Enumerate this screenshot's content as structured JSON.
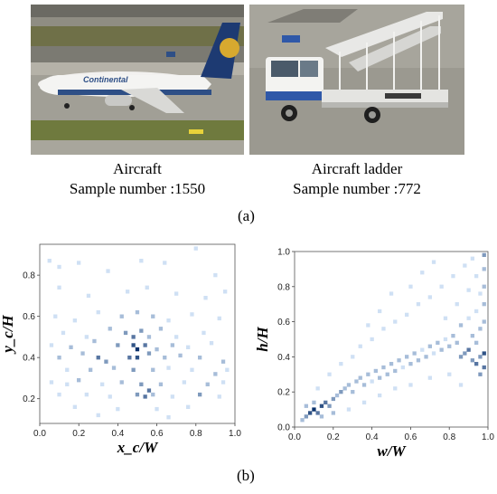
{
  "photos": [
    {
      "caption_line1": "Aircraft",
      "caption_line2": "Sample number :1550",
      "logo_text": "Continental"
    },
    {
      "caption_line1": "Aircraft ladder",
      "caption_line2": "Sample number :772"
    }
  ],
  "panel_a_label": "(a)",
  "panel_b_label": "(b)",
  "chart_data": [
    {
      "type": "heatmap",
      "title": "",
      "xlabel": "x_c/W",
      "ylabel": "y_c/H",
      "xlim": [
        0.0,
        1.0
      ],
      "ylim": [
        0.08,
        0.95
      ],
      "xticks": [
        "0.0",
        "0.2",
        "0.4",
        "0.6",
        "0.8",
        "1.0"
      ],
      "yticks": [
        "0.2",
        "0.4",
        "0.6",
        "0.8"
      ],
      "colormap": [
        "#cfe0f4",
        "#08306b"
      ],
      "cells": [
        [
          0.05,
          0.87,
          1
        ],
        [
          0.1,
          0.84,
          1
        ],
        [
          0.2,
          0.86,
          1
        ],
        [
          0.35,
          0.82,
          1
        ],
        [
          0.52,
          0.87,
          1
        ],
        [
          0.64,
          0.86,
          1
        ],
        [
          0.8,
          0.93,
          1
        ],
        [
          0.9,
          0.8,
          1
        ],
        [
          0.1,
          0.74,
          1
        ],
        [
          0.25,
          0.7,
          1
        ],
        [
          0.45,
          0.72,
          1
        ],
        [
          0.55,
          0.74,
          1
        ],
        [
          0.7,
          0.71,
          1
        ],
        [
          0.85,
          0.69,
          1
        ],
        [
          0.95,
          0.72,
          1
        ],
        [
          0.08,
          0.6,
          1
        ],
        [
          0.18,
          0.58,
          1
        ],
        [
          0.3,
          0.62,
          1
        ],
        [
          0.42,
          0.6,
          2
        ],
        [
          0.5,
          0.62,
          2
        ],
        [
          0.58,
          0.6,
          2
        ],
        [
          0.66,
          0.58,
          1
        ],
        [
          0.78,
          0.61,
          1
        ],
        [
          0.92,
          0.59,
          1
        ],
        [
          0.12,
          0.52,
          1
        ],
        [
          0.24,
          0.5,
          1
        ],
        [
          0.36,
          0.54,
          2
        ],
        [
          0.44,
          0.52,
          3
        ],
        [
          0.48,
          0.5,
          4
        ],
        [
          0.52,
          0.53,
          3
        ],
        [
          0.56,
          0.5,
          2
        ],
        [
          0.62,
          0.54,
          2
        ],
        [
          0.7,
          0.5,
          1
        ],
        [
          0.84,
          0.52,
          1
        ],
        [
          0.06,
          0.46,
          1
        ],
        [
          0.16,
          0.45,
          2
        ],
        [
          0.28,
          0.48,
          2
        ],
        [
          0.4,
          0.46,
          3
        ],
        [
          0.48,
          0.46,
          5
        ],
        [
          0.5,
          0.44,
          6
        ],
        [
          0.54,
          0.46,
          4
        ],
        [
          0.6,
          0.44,
          2
        ],
        [
          0.68,
          0.46,
          2
        ],
        [
          0.76,
          0.45,
          1
        ],
        [
          0.88,
          0.47,
          1
        ],
        [
          0.1,
          0.4,
          2
        ],
        [
          0.22,
          0.42,
          2
        ],
        [
          0.3,
          0.4,
          4
        ],
        [
          0.34,
          0.38,
          3
        ],
        [
          0.46,
          0.4,
          4
        ],
        [
          0.5,
          0.4,
          5
        ],
        [
          0.56,
          0.42,
          3
        ],
        [
          0.64,
          0.4,
          2
        ],
        [
          0.72,
          0.41,
          2
        ],
        [
          0.82,
          0.4,
          2
        ],
        [
          0.94,
          0.38,
          2
        ],
        [
          0.14,
          0.34,
          1
        ],
        [
          0.26,
          0.34,
          2
        ],
        [
          0.38,
          0.35,
          2
        ],
        [
          0.48,
          0.34,
          3
        ],
        [
          0.58,
          0.34,
          2
        ],
        [
          0.66,
          0.35,
          1
        ],
        [
          0.78,
          0.34,
          1
        ],
        [
          0.9,
          0.32,
          2
        ],
        [
          0.96,
          0.34,
          1
        ],
        [
          0.06,
          0.28,
          1
        ],
        [
          0.14,
          0.27,
          1
        ],
        [
          0.2,
          0.29,
          2
        ],
        [
          0.32,
          0.27,
          1
        ],
        [
          0.42,
          0.28,
          2
        ],
        [
          0.52,
          0.27,
          3
        ],
        [
          0.56,
          0.24,
          4
        ],
        [
          0.62,
          0.27,
          2
        ],
        [
          0.74,
          0.28,
          1
        ],
        [
          0.86,
          0.27,
          2
        ],
        [
          0.94,
          0.28,
          1
        ],
        [
          0.1,
          0.22,
          1
        ],
        [
          0.24,
          0.22,
          1
        ],
        [
          0.36,
          0.21,
          1
        ],
        [
          0.5,
          0.22,
          3
        ],
        [
          0.54,
          0.21,
          4
        ],
        [
          0.58,
          0.22,
          2
        ],
        [
          0.68,
          0.21,
          1
        ],
        [
          0.82,
          0.22,
          3
        ],
        [
          0.92,
          0.21,
          1
        ],
        [
          0.18,
          0.16,
          1
        ],
        [
          0.4,
          0.15,
          1
        ],
        [
          0.6,
          0.15,
          1
        ],
        [
          0.76,
          0.16,
          1
        ],
        [
          0.3,
          0.12,
          1
        ],
        [
          0.66,
          0.11,
          1
        ]
      ]
    },
    {
      "type": "heatmap",
      "title": "",
      "xlabel": "w/W",
      "ylabel": "h/H",
      "xlim": [
        0.0,
        1.0
      ],
      "ylim": [
        0.0,
        1.0
      ],
      "xticks": [
        "0.0",
        "0.2",
        "0.4",
        "0.6",
        "0.8",
        "1.0"
      ],
      "yticks": [
        "0.0",
        "0.2",
        "0.4",
        "0.6",
        "0.8",
        "1.0"
      ],
      "colormap": [
        "#cfe0f4",
        "#08306b"
      ],
      "cells": [
        [
          0.04,
          0.04,
          2
        ],
        [
          0.06,
          0.06,
          3
        ],
        [
          0.08,
          0.08,
          5
        ],
        [
          0.1,
          0.1,
          6
        ],
        [
          0.12,
          0.08,
          4
        ],
        [
          0.14,
          0.12,
          5
        ],
        [
          0.16,
          0.14,
          4
        ],
        [
          0.18,
          0.12,
          3
        ],
        [
          0.2,
          0.16,
          3
        ],
        [
          0.1,
          0.14,
          2
        ],
        [
          0.06,
          0.12,
          2
        ],
        [
          0.22,
          0.18,
          2
        ],
        [
          0.24,
          0.2,
          3
        ],
        [
          0.26,
          0.22,
          2
        ],
        [
          0.28,
          0.24,
          2
        ],
        [
          0.3,
          0.2,
          2
        ],
        [
          0.14,
          0.06,
          2
        ],
        [
          0.2,
          0.08,
          2
        ],
        [
          0.32,
          0.26,
          2
        ],
        [
          0.34,
          0.28,
          2
        ],
        [
          0.36,
          0.24,
          2
        ],
        [
          0.38,
          0.3,
          2
        ],
        [
          0.4,
          0.26,
          1
        ],
        [
          0.42,
          0.32,
          2
        ],
        [
          0.44,
          0.28,
          2
        ],
        [
          0.46,
          0.34,
          2
        ],
        [
          0.48,
          0.3,
          2
        ],
        [
          0.5,
          0.36,
          2
        ],
        [
          0.52,
          0.32,
          2
        ],
        [
          0.54,
          0.38,
          2
        ],
        [
          0.56,
          0.34,
          1
        ],
        [
          0.58,
          0.4,
          2
        ],
        [
          0.6,
          0.36,
          2
        ],
        [
          0.62,
          0.42,
          2
        ],
        [
          0.64,
          0.38,
          2
        ],
        [
          0.66,
          0.44,
          1
        ],
        [
          0.68,
          0.4,
          2
        ],
        [
          0.7,
          0.46,
          2
        ],
        [
          0.72,
          0.42,
          1
        ],
        [
          0.74,
          0.48,
          2
        ],
        [
          0.76,
          0.44,
          2
        ],
        [
          0.78,
          0.5,
          1
        ],
        [
          0.8,
          0.46,
          2
        ],
        [
          0.82,
          0.52,
          2
        ],
        [
          0.84,
          0.48,
          2
        ],
        [
          0.86,
          0.4,
          3
        ],
        [
          0.88,
          0.42,
          3
        ],
        [
          0.9,
          0.44,
          4
        ],
        [
          0.92,
          0.38,
          3
        ],
        [
          0.94,
          0.36,
          4
        ],
        [
          0.96,
          0.4,
          3
        ],
        [
          0.98,
          0.42,
          5
        ],
        [
          0.98,
          0.34,
          4
        ],
        [
          0.96,
          0.3,
          3
        ],
        [
          0.98,
          0.6,
          2
        ],
        [
          0.96,
          0.56,
          2
        ],
        [
          0.98,
          0.7,
          2
        ],
        [
          0.94,
          0.66,
          1
        ],
        [
          0.98,
          0.8,
          2
        ],
        [
          0.96,
          0.76,
          1
        ],
        [
          0.98,
          0.9,
          2
        ],
        [
          0.94,
          0.86,
          1
        ],
        [
          0.98,
          0.98,
          3
        ],
        [
          0.3,
          0.4,
          1
        ],
        [
          0.34,
          0.46,
          1
        ],
        [
          0.4,
          0.5,
          1
        ],
        [
          0.46,
          0.56,
          1
        ],
        [
          0.52,
          0.6,
          1
        ],
        [
          0.58,
          0.64,
          1
        ],
        [
          0.64,
          0.7,
          1
        ],
        [
          0.7,
          0.74,
          1
        ],
        [
          0.76,
          0.8,
          1
        ],
        [
          0.82,
          0.86,
          1
        ],
        [
          0.88,
          0.92,
          1
        ],
        [
          0.92,
          0.96,
          1
        ],
        [
          0.6,
          0.8,
          1
        ],
        [
          0.66,
          0.88,
          1
        ],
        [
          0.72,
          0.94,
          1
        ],
        [
          0.5,
          0.76,
          1
        ],
        [
          0.44,
          0.66,
          1
        ],
        [
          0.38,
          0.58,
          1
        ],
        [
          0.18,
          0.3,
          1
        ],
        [
          0.24,
          0.36,
          1
        ],
        [
          0.12,
          0.22,
          1
        ],
        [
          0.28,
          0.1,
          1
        ],
        [
          0.36,
          0.14,
          1
        ],
        [
          0.44,
          0.18,
          1
        ],
        [
          0.52,
          0.22,
          1
        ],
        [
          0.6,
          0.24,
          1
        ],
        [
          0.7,
          0.28,
          1
        ],
        [
          0.8,
          0.3,
          1
        ],
        [
          0.86,
          0.24,
          1
        ],
        [
          0.78,
          0.62,
          1
        ],
        [
          0.84,
          0.7,
          1
        ],
        [
          0.9,
          0.78,
          1
        ],
        [
          0.86,
          0.58,
          2
        ],
        [
          0.9,
          0.62,
          1
        ],
        [
          0.92,
          0.52,
          2
        ],
        [
          0.94,
          0.48,
          2
        ]
      ]
    }
  ]
}
